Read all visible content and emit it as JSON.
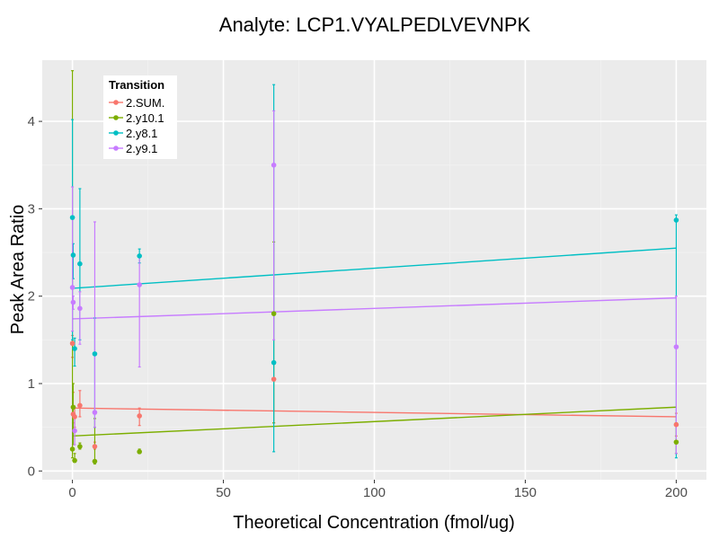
{
  "chart_data": {
    "type": "scatter",
    "title": "Analyte: LCP1.VYALPEDLVEVNPK",
    "xlabel": "Theoretical Concentration (fmol/ug)",
    "ylabel": "Peak Area Ratio",
    "xlim": [
      -10,
      210
    ],
    "ylim": [
      -0.1,
      4.7
    ],
    "x_ticks": [
      0,
      50,
      100,
      150,
      200
    ],
    "y_ticks": [
      0,
      1,
      2,
      3,
      4
    ],
    "grid": true,
    "legend": {
      "title": "Transition",
      "position": "top-left"
    },
    "series": [
      {
        "name": "2.SUM.",
        "color": "#F8766D",
        "points": [
          {
            "x": 0,
            "y": 1.46,
            "err": [
              1.3,
              1.55
            ]
          },
          {
            "x": 0.25,
            "y": 0.65,
            "err": [
              0.55,
              0.9
            ]
          },
          {
            "x": 0.74,
            "y": 0.62,
            "err": [
              0.5,
              0.72
            ]
          },
          {
            "x": 2.47,
            "y": 0.75,
            "err": [
              0.62,
              0.92
            ]
          },
          {
            "x": 7.4,
            "y": 0.28,
            "err": [
              0.25,
              0.33
            ]
          },
          {
            "x": 22.2,
            "y": 0.63,
            "err": [
              0.52,
              0.72
            ]
          },
          {
            "x": 66.7,
            "y": 1.05,
            "err": [
              0.55,
              1.25
            ]
          },
          {
            "x": 200,
            "y": 0.53,
            "err": [
              0.4,
              0.66
            ]
          }
        ],
        "fit": [
          [
            0,
            0.72
          ],
          [
            200,
            0.62
          ]
        ]
      },
      {
        "name": "2.y10.1",
        "color": "#7CAE00",
        "points": [
          {
            "x": 0,
            "y": 0.25,
            "err": [
              0.15,
              4.58
            ]
          },
          {
            "x": 0.25,
            "y": 0.73,
            "err": [
              0.3,
              1.0
            ]
          },
          {
            "x": 0.74,
            "y": 0.12,
            "err": [
              0.1,
              0.2
            ]
          },
          {
            "x": 2.47,
            "y": 0.28,
            "err": [
              0.25,
              0.32
            ]
          },
          {
            "x": 7.4,
            "y": 0.11,
            "err": [
              0.08,
              0.6
            ]
          },
          {
            "x": 22.2,
            "y": 0.22,
            "err": [
              0.2,
              0.25
            ]
          },
          {
            "x": 66.7,
            "y": 1.8,
            "err": [
              0.55,
              2.62
            ]
          },
          {
            "x": 200,
            "y": 0.33,
            "err": [
              0.2,
              0.55
            ]
          }
        ],
        "fit": [
          [
            0,
            0.4
          ],
          [
            200,
            0.73
          ]
        ]
      },
      {
        "name": "2.y8.1",
        "color": "#00BFC4",
        "points": [
          {
            "x": 0,
            "y": 2.9,
            "err": [
              1.5,
              4.02
            ]
          },
          {
            "x": 0.25,
            "y": 2.47,
            "err": [
              2.2,
              2.6
            ]
          },
          {
            "x": 0.74,
            "y": 1.4,
            "err": [
              1.2,
              1.52
            ]
          },
          {
            "x": 2.47,
            "y": 2.37,
            "err": [
              1.5,
              3.23
            ]
          },
          {
            "x": 7.4,
            "y": 1.34,
            "err": [
              0.5,
              1.75
            ]
          },
          {
            "x": 22.2,
            "y": 2.46,
            "err": [
              2.38,
              2.54
            ]
          },
          {
            "x": 66.7,
            "y": 1.24,
            "err": [
              0.22,
              4.42
            ]
          },
          {
            "x": 200,
            "y": 2.87,
            "err": [
              0.15,
              2.93
            ]
          }
        ],
        "fit": [
          [
            0,
            2.09
          ],
          [
            200,
            2.55
          ]
        ]
      },
      {
        "name": "2.y9.1",
        "color": "#C77CFF",
        "points": [
          {
            "x": 0,
            "y": 2.1,
            "err": [
              1.6,
              3.25
            ]
          },
          {
            "x": 0.25,
            "y": 1.93,
            "err": [
              1.85,
              2.0
            ]
          },
          {
            "x": 0.74,
            "y": 0.46,
            "err": [
              0.3,
              0.6
            ]
          },
          {
            "x": 2.47,
            "y": 1.86,
            "err": [
              1.45,
              2.05
            ]
          },
          {
            "x": 7.4,
            "y": 0.67,
            "err": [
              0.5,
              2.85
            ]
          },
          {
            "x": 22.2,
            "y": 2.13,
            "err": [
              1.19,
              2.45
            ]
          },
          {
            "x": 66.7,
            "y": 3.5,
            "err": [
              1.5,
              4.12
            ]
          },
          {
            "x": 200,
            "y": 1.42,
            "err": [
              0.2,
              2.0
            ]
          }
        ],
        "fit": [
          [
            0,
            1.74
          ],
          [
            200,
            1.98
          ]
        ]
      }
    ]
  }
}
